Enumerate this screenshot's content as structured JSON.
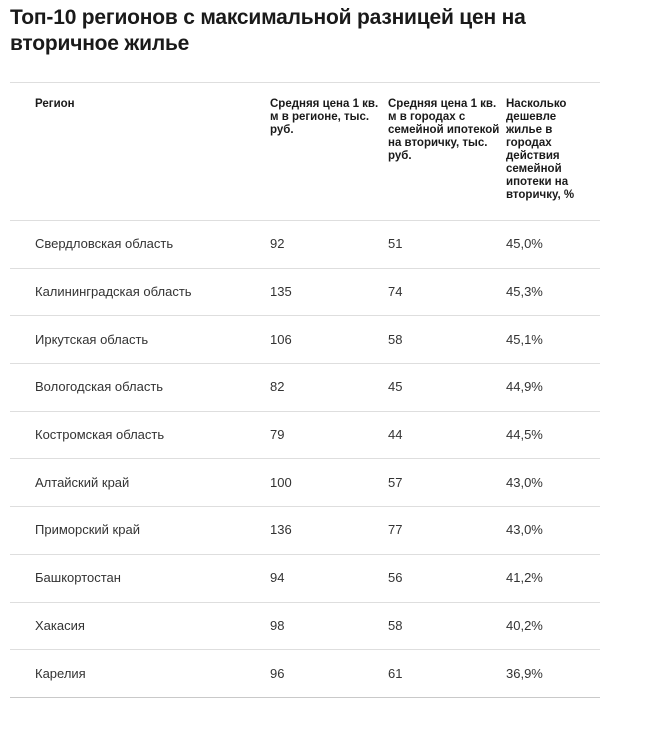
{
  "title": "Топ-10 регионов с максимальной разницей цен на вторичное жилье",
  "table": {
    "headers": [
      "Регион",
      "Средняя цена 1 кв. м в регионе, тыс. руб.",
      "Средняя цена 1 кв. м в городах с семейной ипотекой на вторичку, тыс. руб.",
      "Насколько дешевле жилье в городах действия семейной ипотеки на вторичку, %"
    ],
    "rows": [
      [
        "Свердловская область",
        "92",
        "51",
        "45,0%"
      ],
      [
        "Калининградская область",
        "135",
        "74",
        "45,3%"
      ],
      [
        "Иркутская область",
        "106",
        "58",
        "45,1%"
      ],
      [
        "Вологодская область",
        "82",
        "45",
        "44,9%"
      ],
      [
        "Костромская область",
        "79",
        "44",
        "44,5%"
      ],
      [
        "Алтайский край",
        "100",
        "57",
        "43,0%"
      ],
      [
        "Приморский край",
        "136",
        "77",
        "43,0%"
      ],
      [
        "Башкортостан",
        "94",
        "56",
        "41,2%"
      ],
      [
        "Хакасия",
        "98",
        "58",
        "40,2%"
      ],
      [
        "Карелия",
        "96",
        "61",
        "36,9%"
      ]
    ]
  }
}
